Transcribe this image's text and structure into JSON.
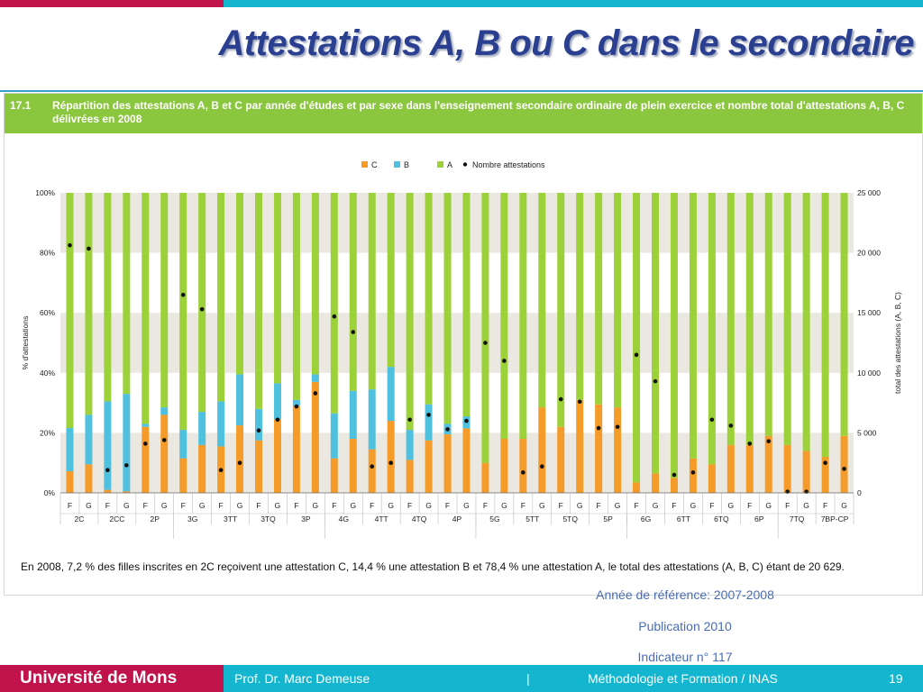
{
  "slide": {
    "title": "Attestations A, B ou C dans le secondaire",
    "panel_number": "17.1",
    "panel_title": "Répartition des attestations A, B et C par année d'études et par sexe dans l'enseignement secondaire ordinaire de plein exercice et nombre total d'attestations A, B, C délivrées en 2008",
    "caption": "En 2008, 7,2 % des filles inscrites en 2C reçoivent une attestation C, 14,4 % une attestation B et 78,4 % une attestation A, le total des attestations (A, B, C) étant de 20 629.",
    "ref_year": "Année de référence: 2007-2008",
    "publication": "Publication 2010",
    "indicator": "Indicateur n°  117"
  },
  "footer": {
    "university": "Université de Mons",
    "author": "Prof. Dr. Marc Demeuse",
    "separator": "|",
    "course": "Méthodologie et Formation / INAS",
    "page": "19"
  },
  "colors": {
    "C": "#f59b29",
    "B": "#4fc0dd",
    "A": "#9cd13a",
    "dot": "#111111",
    "band": "#ebe8e1"
  },
  "chart_data": {
    "type": "bar",
    "stacked": true,
    "legend": [
      "C",
      "B",
      "A",
      "Nombre attestations"
    ],
    "legend_position": "top-center",
    "ylabel": "% d'attestations",
    "y2label": "total des attestations (A, B, C)",
    "y_ticks": [
      "0%",
      "20%",
      "40%",
      "60%",
      "80%",
      "100%"
    ],
    "y2_ticks": [
      "0",
      "5 000",
      "10 000",
      "15 000",
      "20 000",
      "25 000"
    ],
    "ylim": [
      0,
      100
    ],
    "y2lim": [
      0,
      25000
    ],
    "groups": [
      "2C",
      "2CC",
      "2P",
      "3G",
      "3TT",
      "3TQ",
      "3P",
      "4G",
      "4TT",
      "4TQ",
      "4P",
      "5G",
      "5TT",
      "5TQ",
      "5P",
      "6G",
      "6TT",
      "6TQ",
      "6P",
      "7TQ",
      "7BP-CP"
    ],
    "sex_labels": [
      "F",
      "G"
    ],
    "series": [
      {
        "name": "C",
        "values": [
          7.2,
          9.5,
          1,
          0.5,
          22,
          26,
          11.5,
          16,
          15.5,
          22.5,
          17.5,
          24.5,
          29,
          37,
          11.5,
          18,
          14.5,
          24,
          11,
          17.5,
          19.5,
          21.5,
          10,
          18,
          18,
          28.5,
          22,
          31,
          29.5,
          28.5,
          3.5,
          6.5,
          5,
          11.5,
          9.5,
          16,
          16,
          19,
          16,
          14,
          12,
          19
        ]
      },
      {
        "name": "B",
        "values": [
          14.4,
          16.5,
          29.5,
          32.5,
          1,
          2.5,
          9.5,
          11,
          15,
          17,
          10.5,
          12,
          2,
          2.5,
          15,
          16,
          20,
          18,
          10,
          12,
          3.5,
          4,
          0,
          0,
          0,
          0,
          0,
          0,
          0,
          0,
          0,
          0,
          0,
          0,
          0,
          0,
          0,
          0,
          0,
          0,
          0,
          0
        ]
      },
      {
        "name": "A",
        "values": [
          78.4,
          74,
          69.5,
          67,
          77,
          71.5,
          79,
          73,
          69.5,
          60.5,
          72,
          63.5,
          69,
          60.5,
          73.5,
          66,
          65.5,
          58,
          79,
          70.5,
          77,
          74.5,
          90,
          82,
          82,
          71.5,
          78,
          69,
          70.5,
          71.5,
          96.5,
          93.5,
          95,
          88.5,
          90.5,
          84,
          84,
          81,
          84,
          86,
          88,
          81
        ]
      },
      {
        "name": "Nombre attestations",
        "values": [
          20629,
          20350,
          1900,
          2300,
          4100,
          4400,
          16500,
          15300,
          1900,
          2500,
          5200,
          6100,
          7200,
          8300,
          14700,
          13400,
          2200,
          2500,
          6100,
          6500,
          5300,
          6000,
          12500,
          11000,
          1700,
          2200,
          7800,
          7600,
          5400,
          5500,
          11500,
          9300,
          1500,
          1700,
          6100,
          5600,
          4100,
          4300,
          100,
          100,
          2500,
          2000
        ]
      }
    ]
  }
}
